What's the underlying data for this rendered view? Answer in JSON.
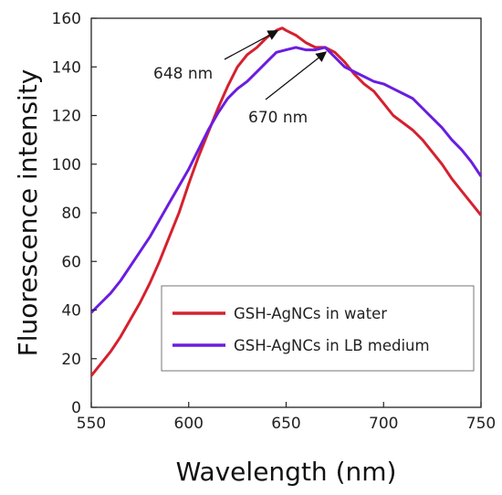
{
  "chart_data": {
    "type": "line",
    "xlabel": "Wavelength (nm)",
    "ylabel": "Fluorescence intensity",
    "xlim": [
      550,
      750
    ],
    "ylim": [
      0,
      160
    ],
    "xticks": [
      550,
      600,
      650,
      700,
      750
    ],
    "yticks": [
      0,
      20,
      40,
      60,
      80,
      100,
      120,
      140,
      160
    ],
    "grid": false,
    "legend_position": "lower-right",
    "series": [
      {
        "name": "GSH-AgNCs in water",
        "color": "#d5212e",
        "x": [
          550,
          555,
          560,
          565,
          570,
          575,
          580,
          585,
          590,
          595,
          600,
          605,
          610,
          615,
          620,
          625,
          630,
          635,
          640,
          645,
          648,
          650,
          655,
          660,
          665,
          670,
          675,
          680,
          685,
          690,
          695,
          700,
          705,
          710,
          715,
          720,
          725,
          730,
          735,
          740,
          745,
          750
        ],
        "y": [
          13,
          18,
          23,
          29,
          36,
          43,
          51,
          60,
          70,
          80,
          92,
          103,
          113,
          123,
          132,
          140,
          145,
          148,
          152,
          155,
          156,
          155,
          153,
          150,
          148,
          148,
          146,
          142,
          137,
          133,
          130,
          125,
          120,
          117,
          114,
          110,
          105,
          100,
          94,
          89,
          84,
          79
        ]
      },
      {
        "name": "GSH-AgNCs in LB medium",
        "color": "#6a1de0",
        "x": [
          550,
          555,
          560,
          565,
          570,
          575,
          580,
          585,
          590,
          595,
          600,
          605,
          610,
          615,
          620,
          625,
          630,
          635,
          640,
          645,
          650,
          655,
          660,
          665,
          670,
          675,
          680,
          685,
          690,
          695,
          700,
          705,
          710,
          715,
          720,
          725,
          730,
          735,
          740,
          745,
          750
        ],
        "y": [
          39,
          43,
          47,
          52,
          58,
          64,
          70,
          77,
          84,
          91,
          98,
          106,
          114,
          121,
          127,
          131,
          134,
          138,
          142,
          146,
          147,
          148,
          147,
          147,
          148,
          144,
          140,
          138,
          136,
          134,
          133,
          131,
          129,
          127,
          123,
          119,
          115,
          110,
          106,
          101,
          95
        ]
      }
    ],
    "annotations": [
      {
        "text": "648 nm",
        "x": 648,
        "y": 156
      },
      {
        "text": "670 nm",
        "x": 670,
        "y": 148
      }
    ]
  }
}
